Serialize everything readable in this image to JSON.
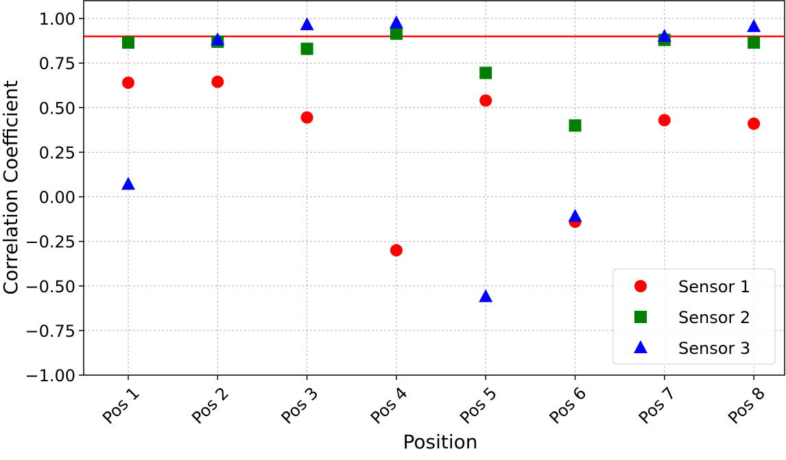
{
  "chart_data": {
    "type": "scatter",
    "x_label": "Position",
    "y_label": "Correlation Coefficient",
    "categories": [
      "Pos 1",
      "Pos 2",
      "Pos 3",
      "Pos 4",
      "Pos 5",
      "Pos 6",
      "Pos 7",
      "Pos 8"
    ],
    "series": [
      {
        "name": "Sensor 1",
        "color": "#ff0000",
        "marker": "circle",
        "values": [
          0.64,
          0.645,
          0.445,
          -0.3,
          0.54,
          -0.14,
          0.43,
          0.41
        ]
      },
      {
        "name": "Sensor 2",
        "color": "#008000",
        "marker": "square",
        "values": [
          0.865,
          0.87,
          0.83,
          0.915,
          0.695,
          0.4,
          0.88,
          0.865
        ]
      },
      {
        "name": "Sensor 3",
        "color": "#0000ff",
        "marker": "triangle",
        "values": [
          0.07,
          0.88,
          0.965,
          0.975,
          -0.56,
          -0.11,
          0.9,
          0.955
        ]
      }
    ],
    "threshold": 0.9,
    "threshold_color": "#ff0000",
    "ylim": [
      -1.0,
      1.1
    ],
    "yticks": [
      {
        "value": 1.0,
        "label": "1.00"
      },
      {
        "value": 0.75,
        "label": "0.75"
      },
      {
        "value": 0.5,
        "label": "0.50"
      },
      {
        "value": 0.25,
        "label": "0.25"
      },
      {
        "value": 0.0,
        "label": "0.00"
      },
      {
        "value": -0.25,
        "label": "−0.25"
      },
      {
        "value": -0.5,
        "label": "−0.50"
      },
      {
        "value": -0.75,
        "label": "−0.75"
      },
      {
        "value": -1.0,
        "label": "−1.00"
      }
    ],
    "grid": true,
    "legend": "lower right"
  }
}
